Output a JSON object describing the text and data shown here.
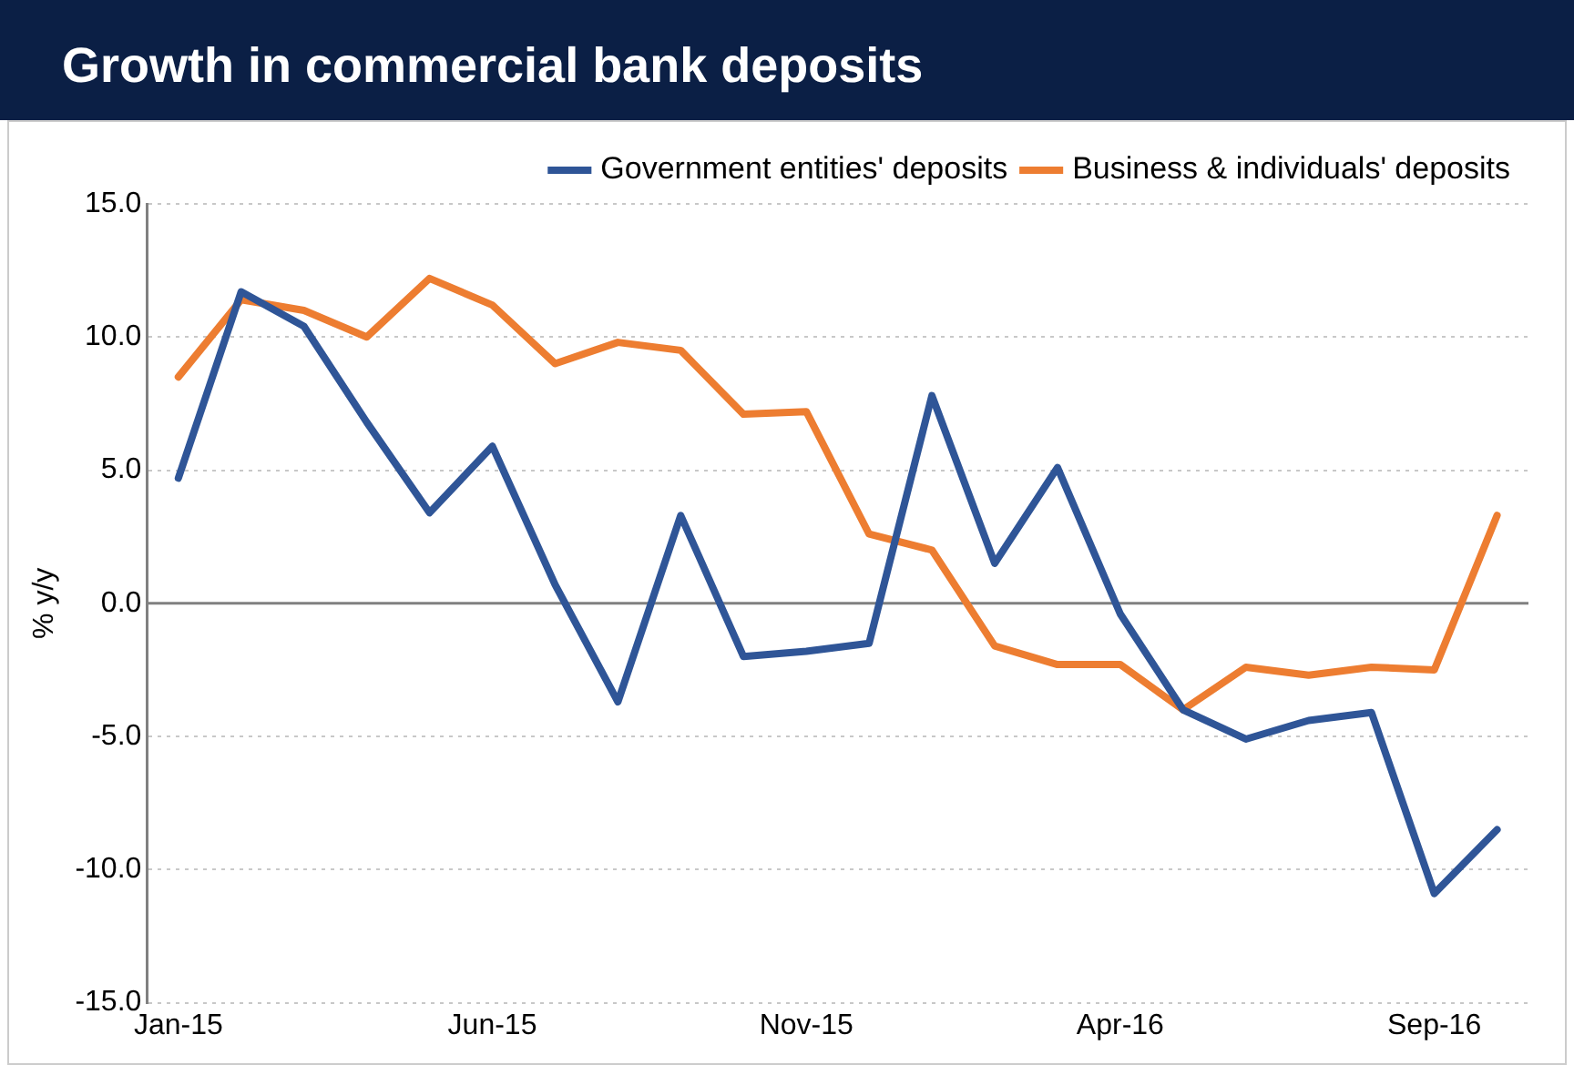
{
  "chart_data": {
    "type": "line",
    "title": "Growth in commercial bank deposits",
    "ylabel": "% y/y",
    "categories": [
      "Jan-15",
      null,
      null,
      null,
      null,
      "Jun-15",
      null,
      null,
      null,
      null,
      "Nov-15",
      null,
      null,
      null,
      null,
      "Apr-16",
      null,
      null,
      null,
      null,
      "Sep-16",
      null
    ],
    "series": [
      {
        "name": "Government entities' deposits",
        "color": "#2f5597",
        "values": [
          4.7,
          11.7,
          10.4,
          6.8,
          3.4,
          5.9,
          0.7,
          -3.7,
          3.3,
          -2.0,
          -1.8,
          -1.5,
          7.8,
          1.5,
          5.1,
          -0.4,
          -4.0,
          -5.1,
          -4.4,
          -4.1,
          -10.9,
          -8.5
        ]
      },
      {
        "name": "Business & individuals' deposits",
        "color": "#ed7d31",
        "values": [
          8.5,
          11.4,
          11.0,
          10.0,
          12.2,
          11.2,
          9.0,
          9.8,
          9.5,
          7.1,
          7.2,
          2.6,
          2.0,
          -1.6,
          -2.3,
          -2.3,
          -4.0,
          -2.4,
          -2.7,
          -2.4,
          -2.5,
          3.3
        ]
      }
    ],
    "ylim": [
      -15,
      15
    ],
    "yticks": [
      {
        "value": -15,
        "label": "-15.0"
      },
      {
        "value": -10,
        "label": "-10.0"
      },
      {
        "value": -5,
        "label": "-5.0"
      },
      {
        "value": 0,
        "label": "0.0"
      },
      {
        "value": 5,
        "label": "5.0"
      },
      {
        "value": 10,
        "label": "10.0"
      },
      {
        "value": 15,
        "label": "15.0"
      }
    ],
    "grid": "y",
    "legend": "top",
    "marker": "none",
    "line_style": "solid"
  }
}
